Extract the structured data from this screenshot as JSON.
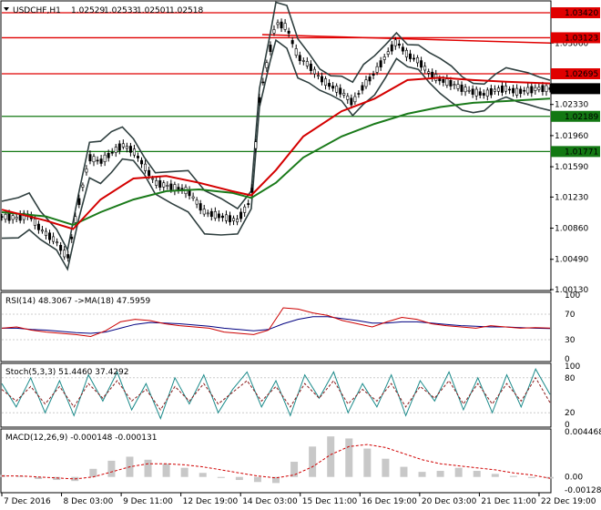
{
  "window": {
    "symbol_header": "USDCHF,H1",
    "ohlc": [
      "1.02529",
      "1.02533",
      "1.02501",
      "1.02518"
    ]
  },
  "colors": {
    "candle": "#000000",
    "bollinger": "#2f3f3f",
    "ma_fast": "#1a3a3a",
    "ma_red": "#d40000",
    "ma_green": "#1a7a1a",
    "hline_red": "#e00000",
    "hline_green": "#137813",
    "trend_red": "#e00000",
    "rsi_main": "#cc0000",
    "rsi_signal": "#000080",
    "stoch_main": "#1a8a8a",
    "stoch_signal": "#8a1a1a",
    "macd_hist": "#c8c8c8",
    "macd_signal": "#d00000",
    "current_price_bg": "#000000"
  },
  "chart_data": [
    {
      "type": "line",
      "pane": "price",
      "title": "USDCHF,H1",
      "x_ticks": [
        "7 Dec 2016",
        "8 Dec 03:00",
        "9 Dec 11:00",
        "12 Dec 19:00",
        "14 Dec 03:00",
        "15 Dec 11:00",
        "16 Dec 19:00",
        "20 Dec 03:00",
        "21 Dec 11:00",
        "22 Dec 19:00"
      ],
      "y_ticks": [
        "1.03060",
        "1.02330",
        "1.01960",
        "1.01590",
        "1.01230",
        "1.00860",
        "1.00490",
        "1.00130"
      ],
      "ylim": [
        1.0013,
        1.0355
      ],
      "price_levels": [
        {
          "label": "1.03420",
          "value": 1.0342,
          "color": "red"
        },
        {
          "label": "1.03123",
          "value": 1.03123,
          "color": "red"
        },
        {
          "label": "1.02695",
          "value": 1.02695,
          "color": "red"
        },
        {
          "label": "1.02189",
          "value": 1.02189,
          "color": "green"
        },
        {
          "label": "1.01771",
          "value": 1.01771,
          "color": "green"
        }
      ],
      "current_price": "1.02518",
      "trendline": {
        "from": [
          0.475,
          1.0316
        ],
        "to": [
          1.0,
          1.0306
        ]
      },
      "close_path": [
        [
          0.0,
          1.01
        ],
        [
          0.03,
          1.0098
        ],
        [
          0.05,
          1.0102
        ],
        [
          0.07,
          1.0085
        ],
        [
          0.1,
          1.007
        ],
        [
          0.12,
          1.005
        ],
        [
          0.14,
          1.0115
        ],
        [
          0.16,
          1.017
        ],
        [
          0.18,
          1.0165
        ],
        [
          0.2,
          1.0175
        ],
        [
          0.22,
          1.0185
        ],
        [
          0.24,
          1.0178
        ],
        [
          0.26,
          1.016
        ],
        [
          0.28,
          1.014
        ],
        [
          0.31,
          1.0135
        ],
        [
          0.34,
          1.013
        ],
        [
          0.37,
          1.0105
        ],
        [
          0.4,
          1.01
        ],
        [
          0.43,
          1.0095
        ],
        [
          0.455,
          1.012
        ],
        [
          0.47,
          1.024
        ],
        [
          0.49,
          1.03
        ],
        [
          0.5,
          1.033
        ],
        [
          0.52,
          1.0325
        ],
        [
          0.54,
          1.029
        ],
        [
          0.56,
          1.028
        ],
        [
          0.58,
          1.0265
        ],
        [
          0.6,
          1.0255
        ],
        [
          0.62,
          1.0248
        ],
        [
          0.64,
          1.0235
        ],
        [
          0.66,
          1.0255
        ],
        [
          0.68,
          1.027
        ],
        [
          0.7,
          1.029
        ],
        [
          0.72,
          1.0308
        ],
        [
          0.74,
          1.0292
        ],
        [
          0.76,
          1.0285
        ],
        [
          0.78,
          1.027
        ],
        [
          0.8,
          1.0262
        ],
        [
          0.82,
          1.0258
        ],
        [
          0.84,
          1.0252
        ],
        [
          0.86,
          1.0248
        ],
        [
          0.88,
          1.0245
        ],
        [
          0.9,
          1.025
        ],
        [
          0.92,
          1.0252
        ],
        [
          0.94,
          1.0248
        ],
        [
          0.96,
          1.025
        ],
        [
          0.98,
          1.0252
        ],
        [
          1.0,
          1.02518
        ]
      ],
      "ma_red": [
        [
          0.0,
          1.0108
        ],
        [
          0.08,
          1.0095
        ],
        [
          0.13,
          1.0085
        ],
        [
          0.18,
          1.012
        ],
        [
          0.24,
          1.0145
        ],
        [
          0.3,
          1.0148
        ],
        [
          0.36,
          1.014
        ],
        [
          0.42,
          1.013
        ],
        [
          0.455,
          1.0125
        ],
        [
          0.5,
          1.0155
        ],
        [
          0.55,
          1.0195
        ],
        [
          0.62,
          1.0225
        ],
        [
          0.68,
          1.024
        ],
        [
          0.74,
          1.0262
        ],
        [
          0.8,
          1.0265
        ],
        [
          0.86,
          1.0262
        ],
        [
          0.92,
          1.026
        ],
        [
          1.0,
          1.0258
        ]
      ],
      "ma_green": [
        [
          0.0,
          1.0105
        ],
        [
          0.08,
          1.01
        ],
        [
          0.13,
          1.009
        ],
        [
          0.18,
          1.0105
        ],
        [
          0.24,
          1.012
        ],
        [
          0.3,
          1.013
        ],
        [
          0.36,
          1.0132
        ],
        [
          0.42,
          1.0128
        ],
        [
          0.455,
          1.0122
        ],
        [
          0.5,
          1.014
        ],
        [
          0.55,
          1.017
        ],
        [
          0.62,
          1.0195
        ],
        [
          0.68,
          1.021
        ],
        [
          0.74,
          1.0222
        ],
        [
          0.8,
          1.023
        ],
        [
          0.86,
          1.0235
        ],
        [
          0.92,
          1.0237
        ],
        [
          1.0,
          1.024
        ]
      ]
    },
    {
      "type": "line",
      "pane": "rsi",
      "title": "RSI(14) 48.3067",
      "subtitle": "->MA(18) 47.5959",
      "y_ticks": [
        "100",
        "70",
        "30",
        "0"
      ],
      "ylim": [
        0,
        100
      ],
      "values": [
        48,
        50,
        45,
        42,
        40,
        38,
        35,
        44,
        58,
        62,
        60,
        55,
        52,
        50,
        48,
        42,
        40,
        38,
        45,
        80,
        78,
        72,
        68,
        60,
        55,
        50,
        58,
        65,
        62,
        55,
        52,
        50,
        48,
        52,
        50,
        48,
        49,
        48.3
      ],
      "signal": [
        48,
        48,
        46,
        45,
        43,
        41,
        40,
        42,
        48,
        54,
        57,
        56,
        55,
        53,
        51,
        48,
        46,
        44,
        46,
        55,
        62,
        66,
        66,
        63,
        60,
        56,
        56,
        58,
        58,
        56,
        54,
        52,
        51,
        50,
        50,
        49,
        48,
        47.6
      ]
    },
    {
      "type": "line",
      "pane": "stochastic",
      "title": "Stoch(5,3,3) 51.4460 37.4292",
      "y_ticks": [
        "100",
        "80",
        "20",
        "0"
      ],
      "ylim": [
        0,
        100
      ],
      "values": [
        70,
        30,
        80,
        20,
        75,
        15,
        85,
        40,
        90,
        25,
        70,
        10,
        80,
        35,
        85,
        20,
        60,
        90,
        30,
        75,
        15,
        85,
        45,
        90,
        20,
        70,
        30,
        85,
        15,
        75,
        40,
        90,
        25,
        80,
        20,
        85,
        30,
        95,
        51.4
      ],
      "signal": [
        60,
        40,
        65,
        35,
        65,
        30,
        70,
        45,
        75,
        40,
        60,
        25,
        65,
        40,
        70,
        35,
        55,
        75,
        40,
        65,
        30,
        70,
        45,
        75,
        35,
        60,
        40,
        70,
        30,
        65,
        45,
        75,
        35,
        70,
        35,
        70,
        40,
        80,
        37.4
      ]
    },
    {
      "type": "bar",
      "pane": "macd",
      "title": "MACD(12,26,9) -0.000148 -0.000131",
      "y_ticks": [
        "0.004468",
        "0.00",
        "-0.001284"
      ],
      "ylim": [
        -0.001284,
        0.004468
      ],
      "values": [
        0.0002,
        0.0001,
        -0.0002,
        -0.0003,
        -0.0004,
        0.0008,
        0.0016,
        0.002,
        0.0017,
        0.0013,
        0.0009,
        0.0004,
        -0.0001,
        -0.0003,
        -0.0005,
        -0.0006,
        0.0015,
        0.003,
        0.004,
        0.0038,
        0.0028,
        0.0018,
        0.001,
        0.0005,
        0.0006,
        0.0009,
        0.0006,
        0.0003,
        0.0001,
        -0.0001,
        -0.00015
      ],
      "signal": [
        0.0001,
        0.0001,
        0.0,
        -0.0001,
        -0.0002,
        0.0,
        0.0005,
        0.001,
        0.0013,
        0.0013,
        0.0012,
        0.001,
        0.0007,
        0.0004,
        0.0001,
        -0.0001,
        0.0002,
        0.001,
        0.0022,
        0.003,
        0.0032,
        0.0029,
        0.0023,
        0.0017,
        0.0013,
        0.0011,
        0.0009,
        0.0007,
        0.0004,
        0.0002,
        -0.00013
      ]
    }
  ]
}
